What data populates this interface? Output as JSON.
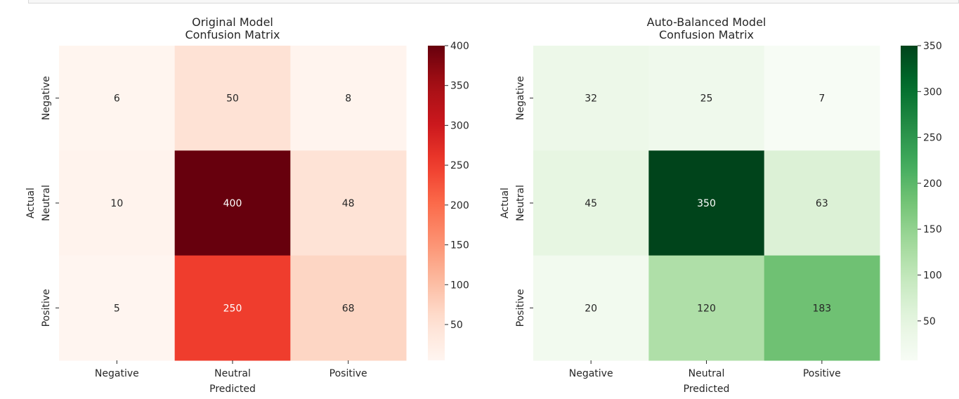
{
  "chart_data": [
    {
      "type": "heatmap",
      "title": "Original Model\nConfusion Matrix",
      "xlabel": "Predicted",
      "ylabel": "Actual",
      "x_categories": [
        "Negative",
        "Neutral",
        "Positive"
      ],
      "y_categories": [
        "Negative",
        "Neutral",
        "Positive"
      ],
      "values": [
        [
          6,
          50,
          8
        ],
        [
          10,
          400,
          48
        ],
        [
          5,
          250,
          68
        ]
      ],
      "colormap": "Reds",
      "vmin": 5,
      "vmax": 400,
      "colorbar_ticks": [
        50,
        100,
        150,
        200,
        250,
        300,
        350,
        400
      ]
    },
    {
      "type": "heatmap",
      "title": "Auto-Balanced Model\nConfusion Matrix",
      "xlabel": "Predicted",
      "ylabel": "Actual",
      "x_categories": [
        "Negative",
        "Neutral",
        "Positive"
      ],
      "y_categories": [
        "Negative",
        "Neutral",
        "Positive"
      ],
      "values": [
        [
          32,
          25,
          7
        ],
        [
          45,
          350,
          63
        ],
        [
          20,
          120,
          183
        ]
      ],
      "colormap": "Greens",
      "vmin": 7,
      "vmax": 350,
      "colorbar_ticks": [
        50,
        100,
        150,
        200,
        250,
        300,
        350
      ]
    }
  ]
}
